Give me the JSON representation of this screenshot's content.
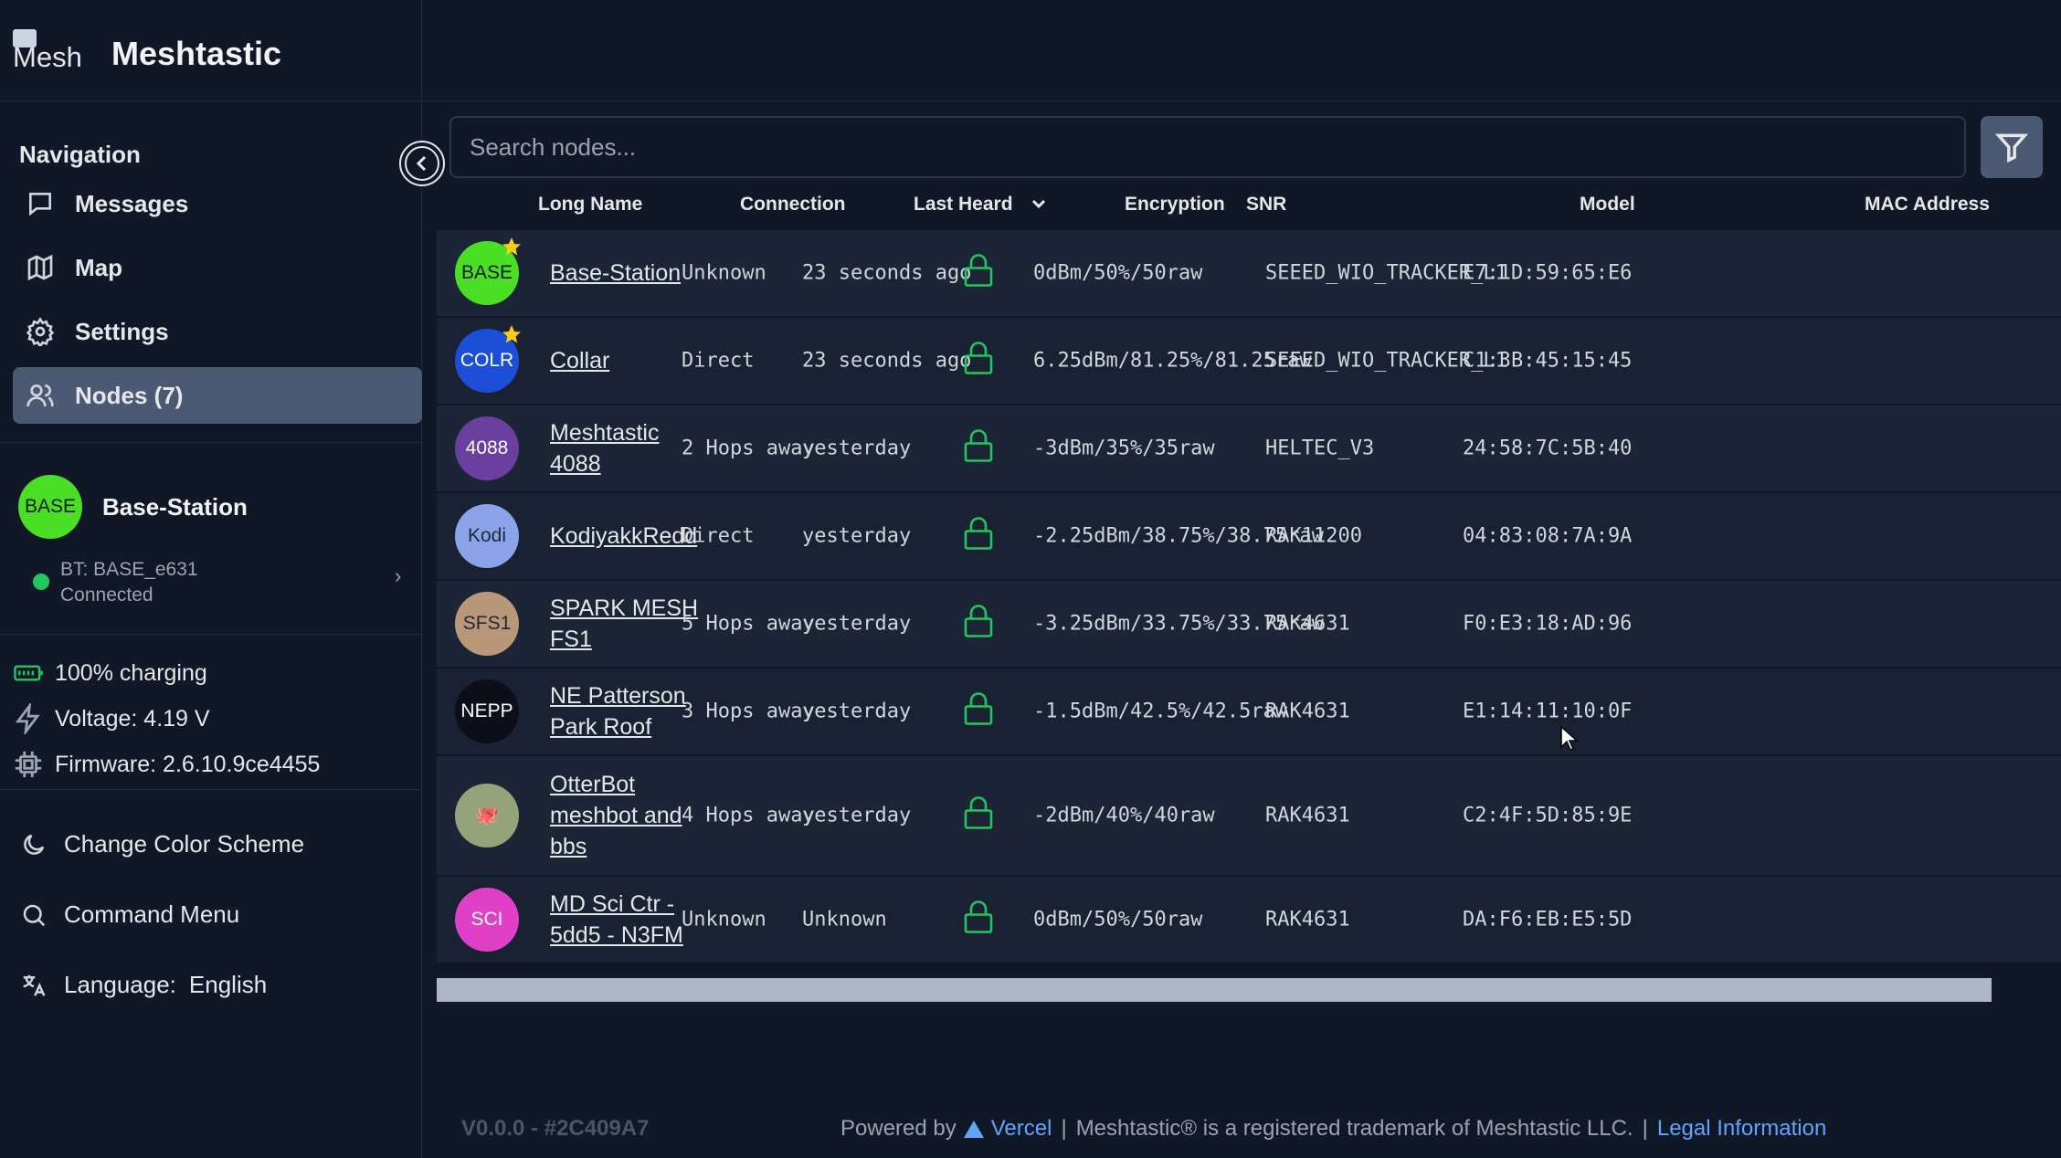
{
  "brand": {
    "logo_alt": "Mesh",
    "title": "Meshtastic"
  },
  "nav": {
    "heading": "Navigation",
    "items": [
      {
        "label": "Messages",
        "icon": "message-square-icon"
      },
      {
        "label": "Map",
        "icon": "map-icon"
      },
      {
        "label": "Settings",
        "icon": "gear-icon"
      },
      {
        "label": "Nodes (7)",
        "icon": "users-icon",
        "active": true
      }
    ],
    "collapse_icon": "chevron-left-icon"
  },
  "device": {
    "avatar": "BASE",
    "name": "Base-Station",
    "bt": "BT: BASE_e631",
    "status": "Connected",
    "status_color": "#22c55e"
  },
  "stats": {
    "battery": "100% charging",
    "voltage": "Voltage: 4.19 V",
    "firmware": "Firmware: 2.6.10.9ce4455"
  },
  "bottom_menu": {
    "color_scheme": "Change Color Scheme",
    "command_menu": "Command Menu",
    "language_label": "Language:",
    "language_value": "English"
  },
  "search": {
    "placeholder": "Search nodes..."
  },
  "table": {
    "headers": {
      "long_name": "Long Name",
      "connection": "Connection",
      "last_heard": "Last Heard",
      "encryption": "Encryption",
      "snr": "SNR",
      "model": "Model",
      "mac": "MAC Address"
    },
    "rows": [
      {
        "avatar": "BASE",
        "avatar_color": "#4ade24",
        "avatar_text_color": "#0f172a",
        "favorite": true,
        "name": "Base-Station",
        "connection": "Unknown",
        "last_heard": "23 seconds ago",
        "snr": "0dBm/50%/50raw",
        "model": "SEEED_WIO_TRACKER_L1",
        "mac": "E7:1D:59:65:E6"
      },
      {
        "avatar": "COLR",
        "avatar_color": "#1d4ed8",
        "avatar_text_color": "#ffffff",
        "favorite": true,
        "name": "Collar",
        "connection": "Direct",
        "last_heard": "23 seconds ago",
        "snr": "6.25dBm/81.25%/81.25raw",
        "model": "SEEED_WIO_TRACKER_L1",
        "mac": "C1:3B:45:15:45"
      },
      {
        "avatar": "4088",
        "avatar_color": "#6b3fa0",
        "avatar_text_color": "#ffffff",
        "favorite": false,
        "name": "Meshtastic 4088",
        "connection": "2 Hops away",
        "last_heard": "yesterday",
        "snr": "-3dBm/35%/35raw",
        "model": "HELTEC_V3",
        "mac": "24:58:7C:5B:40"
      },
      {
        "avatar": "Kodi",
        "avatar_color": "#8ba3e8",
        "avatar_text_color": "#1f2937",
        "favorite": false,
        "name": "KodiyakkRedd",
        "connection": "Direct",
        "last_heard": "yesterday",
        "snr": "-2.25dBm/38.75%/38.75raw",
        "model": "RAK11200",
        "mac": "04:83:08:7A:9A"
      },
      {
        "avatar": "SFS1",
        "avatar_color": "#b89878",
        "avatar_text_color": "#1f2937",
        "favorite": false,
        "name": "SPARK MESH FS1",
        "connection": "5 Hops away",
        "last_heard": "yesterday",
        "snr": "-3.25dBm/33.75%/33.75raw",
        "model": "RAK4631",
        "mac": "F0:E3:18:AD:96"
      },
      {
        "avatar": "NEPP",
        "avatar_color": "#0c0f1a",
        "avatar_text_color": "#ffffff",
        "favorite": false,
        "name": "NE Patterson Park Roof",
        "connection": "3 Hops away",
        "last_heard": "yesterday",
        "snr": "-1.5dBm/42.5%/42.5raw",
        "model": "RAK4631",
        "mac": "E1:14:11:10:0F"
      },
      {
        "avatar": "🐙",
        "avatar_color": "#94a37a",
        "avatar_text_color": "#7f1d1d",
        "favorite": false,
        "name": "OtterBot meshbot and bbs",
        "connection": "4 Hops away",
        "last_heard": "yesterday",
        "snr": "-2dBm/40%/40raw",
        "model": "RAK4631",
        "mac": "C2:4F:5D:85:9E"
      },
      {
        "avatar": "SCI",
        "avatar_color": "#e040c8",
        "avatar_text_color": "#ffffff",
        "favorite": false,
        "name": "MD Sci Ctr - 5dd5 - N3FM",
        "connection": "Unknown",
        "last_heard": "Unknown",
        "snr": "0dBm/50%/50raw",
        "model": "RAK4631",
        "mac": "DA:F6:EB:E5:5D"
      }
    ]
  },
  "footer": {
    "version": "V0.0.0  -  #2C409A7",
    "powered_by": "Powered by",
    "vercel": "Vercel",
    "trademark": "Meshtastic® is a registered trademark of Meshtastic LLC.",
    "legal": "Legal Information"
  }
}
